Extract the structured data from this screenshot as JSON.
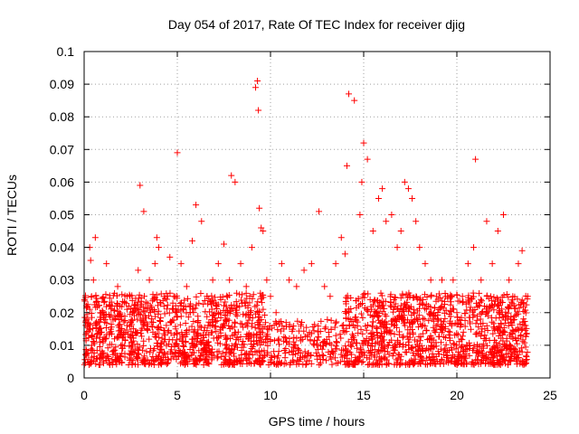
{
  "chart_data": {
    "type": "scatter",
    "title": "Day 054 of 2017, Rate Of TEC Index for receiver djig",
    "xlabel": "GPS time / hours",
    "ylabel": "ROTI / TECUs",
    "xlim": [
      0,
      25
    ],
    "ylim": [
      0,
      0.1
    ],
    "xticks": [
      0,
      5,
      10,
      15,
      20,
      25
    ],
    "xtick_labels": [
      "0",
      "5",
      "10",
      "15",
      "20",
      "25"
    ],
    "yticks": [
      0,
      0.01,
      0.02,
      0.03,
      0.04,
      0.05,
      0.06,
      0.07,
      0.08,
      0.09,
      0.1
    ],
    "ytick_labels": [
      "0",
      "0.01",
      "0.02",
      "0.03",
      "0.04",
      "0.05",
      "0.06",
      "0.07",
      "0.08",
      "0.09",
      "0.1"
    ],
    "grid": true,
    "marker": "+",
    "color": "#ff0000",
    "series": [
      {
        "name": "ROTI",
        "band_description": "dense band of points roughly 0.005-0.025 TECUs from 0 to 23.8 h, sparse gap near 10-14 h",
        "x": [
          0.1,
          0.2,
          0.3,
          0.35,
          0.4,
          0.5,
          0.6,
          0.8,
          1.0,
          1.2,
          1.5,
          1.8,
          2.0,
          2.3,
          2.6,
          2.9,
          3.0,
          3.2,
          3.5,
          3.8,
          3.9,
          4.0,
          4.3,
          4.6,
          4.9,
          5.0,
          5.2,
          5.5,
          5.8,
          6.0,
          6.3,
          6.6,
          6.9,
          7.2,
          7.5,
          7.8,
          7.9,
          8.1,
          8.4,
          8.7,
          9.0,
          9.2,
          9.3,
          9.35,
          9.4,
          9.5,
          9.6,
          9.8,
          10.0,
          10.3,
          10.6,
          11.0,
          11.4,
          11.8,
          12.2,
          12.6,
          12.9,
          13.2,
          13.5,
          13.8,
          14.0,
          14.1,
          14.2,
          14.5,
          14.8,
          14.9,
          15.0,
          15.2,
          15.5,
          15.8,
          16.0,
          16.2,
          16.5,
          16.8,
          17.0,
          17.2,
          17.4,
          17.6,
          17.8,
          18.0,
          18.3,
          18.6,
          18.9,
          19.2,
          19.5,
          19.8,
          20.0,
          20.3,
          20.6,
          20.9,
          21.0,
          21.3,
          21.6,
          21.9,
          22.2,
          22.5,
          22.8,
          23.0,
          23.3,
          23.5,
          23.8
        ],
        "y": [
          0.012,
          0.018,
          0.04,
          0.036,
          0.025,
          0.03,
          0.043,
          0.015,
          0.02,
          0.035,
          0.022,
          0.028,
          0.018,
          0.025,
          0.02,
          0.033,
          0.059,
          0.051,
          0.03,
          0.035,
          0.043,
          0.04,
          0.025,
          0.037,
          0.02,
          0.069,
          0.035,
          0.028,
          0.042,
          0.053,
          0.048,
          0.025,
          0.03,
          0.035,
          0.041,
          0.03,
          0.062,
          0.06,
          0.035,
          0.028,
          0.04,
          0.089,
          0.091,
          0.082,
          0.052,
          0.046,
          0.045,
          0.03,
          0.025,
          0.02,
          0.035,
          0.03,
          0.028,
          0.033,
          0.035,
          0.051,
          0.028,
          0.025,
          0.035,
          0.043,
          0.038,
          0.065,
          0.087,
          0.085,
          0.05,
          0.06,
          0.072,
          0.067,
          0.045,
          0.055,
          0.058,
          0.048,
          0.05,
          0.04,
          0.045,
          0.06,
          0.058,
          0.055,
          0.048,
          0.04,
          0.035,
          0.03,
          0.025,
          0.03,
          0.025,
          0.03,
          0.02,
          0.025,
          0.035,
          0.04,
          0.067,
          0.03,
          0.048,
          0.035,
          0.045,
          0.05,
          0.03,
          0.025,
          0.035,
          0.039,
          0.025
        ]
      }
    ]
  }
}
